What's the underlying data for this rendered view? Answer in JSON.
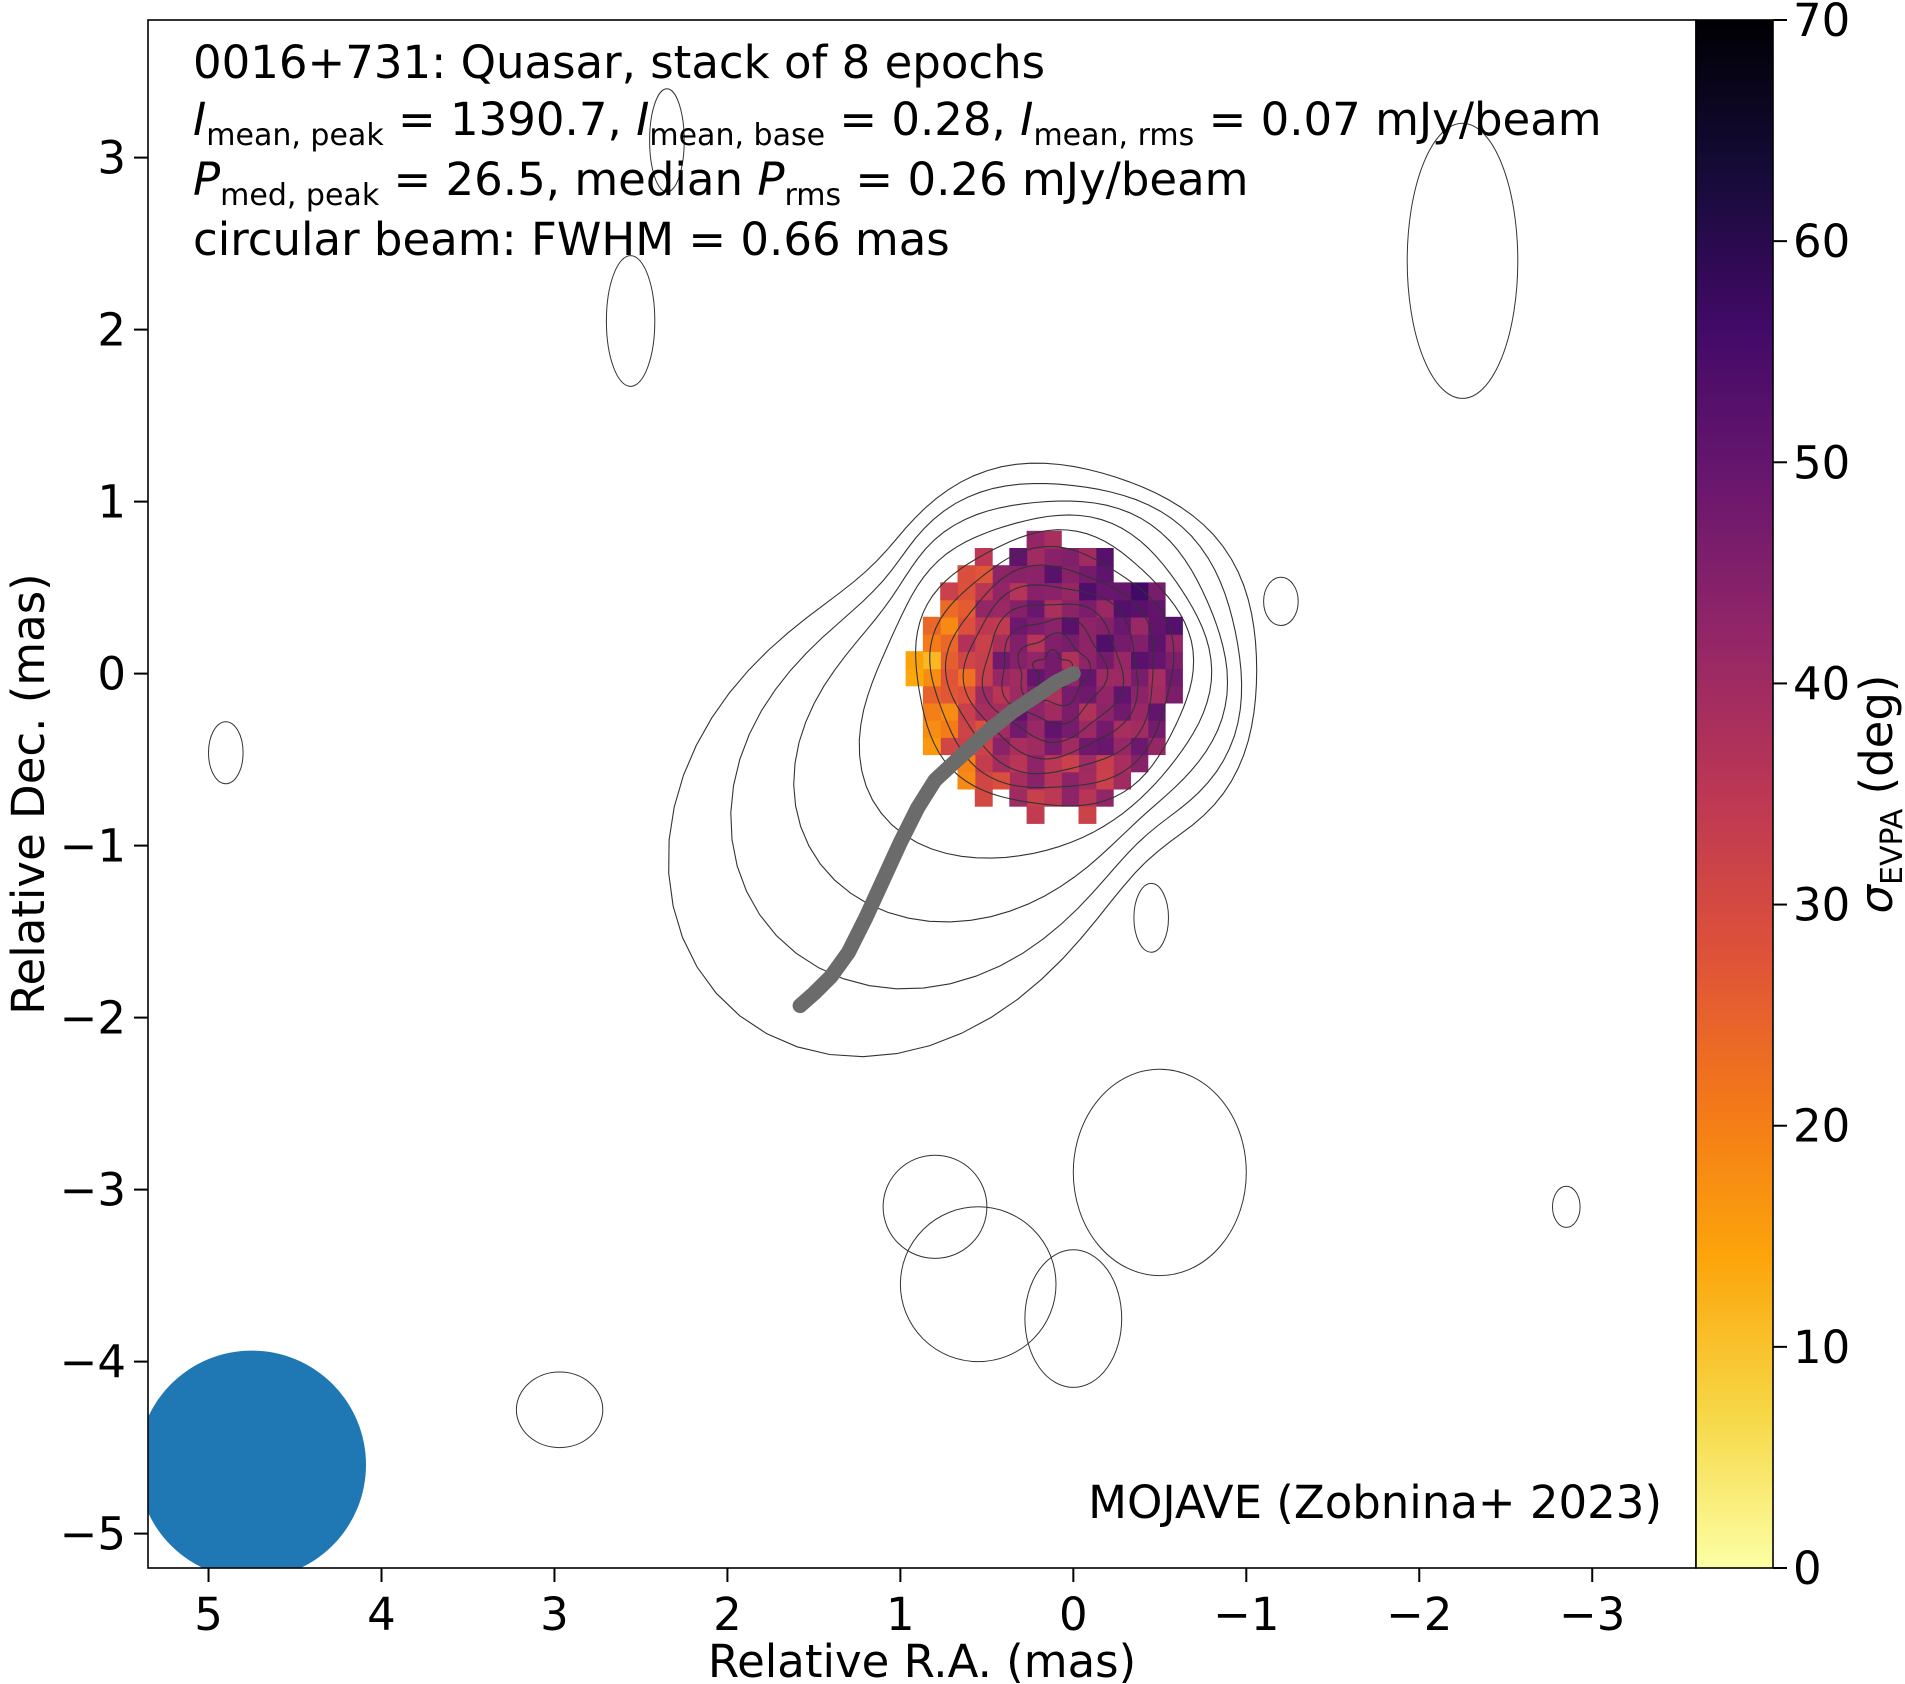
{
  "chart_data": {
    "type": "heatmap",
    "annotation": {
      "line1": "0016+731: Quasar, stack of 8 epochs",
      "line2": {
        "I": "I",
        "peak_sub": "mean, peak",
        "peak_val": " = 1390.7, ",
        "base_sub": "mean, base",
        "base_val": " = 0.28, ",
        "rms_sub": "mean, rms",
        "rms_val": " = 0.07 mJy/beam"
      },
      "line3": {
        "P": "P",
        "peak_sub": "med, peak",
        "mid": " = 26.5, median ",
        "rms_sub": "rms",
        "end": " = 0.26 mJy/beam"
      },
      "line4": "circular beam: FWHM = 0.66 mas",
      "credit": "MOJAVE (Zobnina+ 2023)"
    },
    "xlabel": "Relative R.A. (mas)",
    "ylabel": "Relative Dec. (mas)",
    "colorbar_label": {
      "symbol": "σ",
      "sub": "EVPA",
      "unit": " (deg)"
    },
    "xlim": [
      5.35,
      -3.6
    ],
    "ylim": [
      -5.2,
      3.8
    ],
    "x_ticks": [
      5,
      4,
      3,
      2,
      1,
      0,
      -1,
      -2,
      -3
    ],
    "x_tick_labels": [
      "5",
      "4",
      "3",
      "2",
      "1",
      "0",
      "−1",
      "−2",
      "−3"
    ],
    "y_ticks": [
      3,
      2,
      1,
      0,
      -1,
      -2,
      -3,
      -4,
      -5
    ],
    "y_tick_labels": [
      "3",
      "2",
      "1",
      "0",
      "−1",
      "−2",
      "−3",
      "−4",
      "−5"
    ],
    "colorbar_range": [
      0,
      70
    ],
    "colorbar_ticks": [
      0,
      10,
      20,
      30,
      40,
      50,
      60,
      70
    ],
    "colormap": "inferno_r",
    "colormap_stops": [
      "#fcffa4",
      "#f6d746",
      "#fca50a",
      "#f37819",
      "#dd513a",
      "#bc3754",
      "#932667",
      "#6a176e",
      "#420a68",
      "#160b39",
      "#000004"
    ],
    "heatmap": {
      "center": [
        0.12,
        -0.02
      ],
      "radius_mas": 0.78,
      "pixel_mas": 0.1,
      "description_values": "EVPA std ~20-30 deg on east edge, ~40-50 deg in core and south, up to ~60 deg in north-west corner"
    },
    "ridge_line": {
      "x": [
        0.0,
        0.1,
        0.2,
        0.35,
        0.5,
        0.65,
        0.8,
        0.9,
        1.0,
        1.1,
        1.2,
        1.3,
        1.4,
        1.5,
        1.58
      ],
      "y": [
        0.0,
        -0.05,
        -0.12,
        -0.22,
        -0.34,
        -0.48,
        -0.62,
        -0.78,
        -0.98,
        -1.2,
        -1.42,
        -1.62,
        -1.76,
        -1.86,
        -1.93
      ],
      "color": "#6b6b6b"
    },
    "contours": {
      "core_center": [
        0.12,
        0.02
      ],
      "core_levels_radius_mas": [
        0.1,
        0.2,
        0.3,
        0.4,
        0.5,
        0.6,
        0.7,
        0.8,
        0.9,
        1.0,
        1.1,
        1.2
      ],
      "jet_direction_deg": 225,
      "color": "#333333"
    },
    "beam": {
      "x": 4.75,
      "y": -4.6,
      "fwhm_mas": 0.66,
      "color": "#1f77b4"
    }
  }
}
